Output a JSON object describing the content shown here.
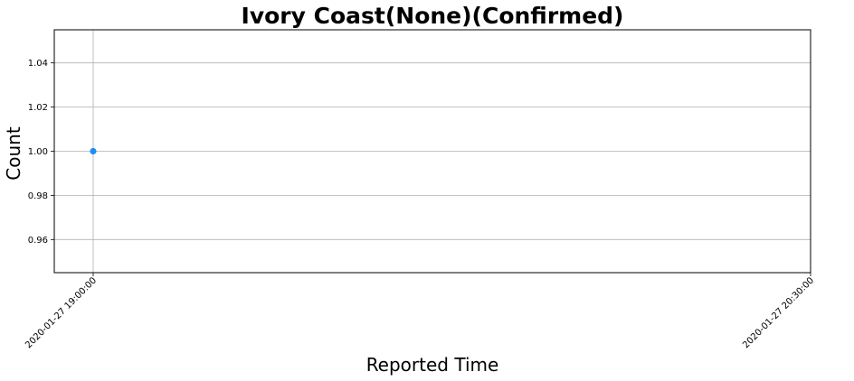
{
  "chart_data": {
    "type": "scatter",
    "title": "Ivory Coast(None)(Confirmed)",
    "xlabel": "Reported Time",
    "ylabel": "Count",
    "x_ticks": [
      "2020-01-27 19:00:00",
      "2020-01-27 20:30:00"
    ],
    "y_ticks": [
      0.96,
      0.98,
      1.0,
      1.02,
      1.04
    ],
    "y_tick_labels": [
      "0.96",
      "0.98",
      "1.00",
      "1.02",
      "1.04"
    ],
    "ylim": [
      0.945,
      1.055
    ],
    "grid": true,
    "series": [
      {
        "color": "#1f8ef1",
        "points": [
          {
            "x": "2020-01-27 19:00:00",
            "y": 1.0
          }
        ]
      }
    ]
  }
}
